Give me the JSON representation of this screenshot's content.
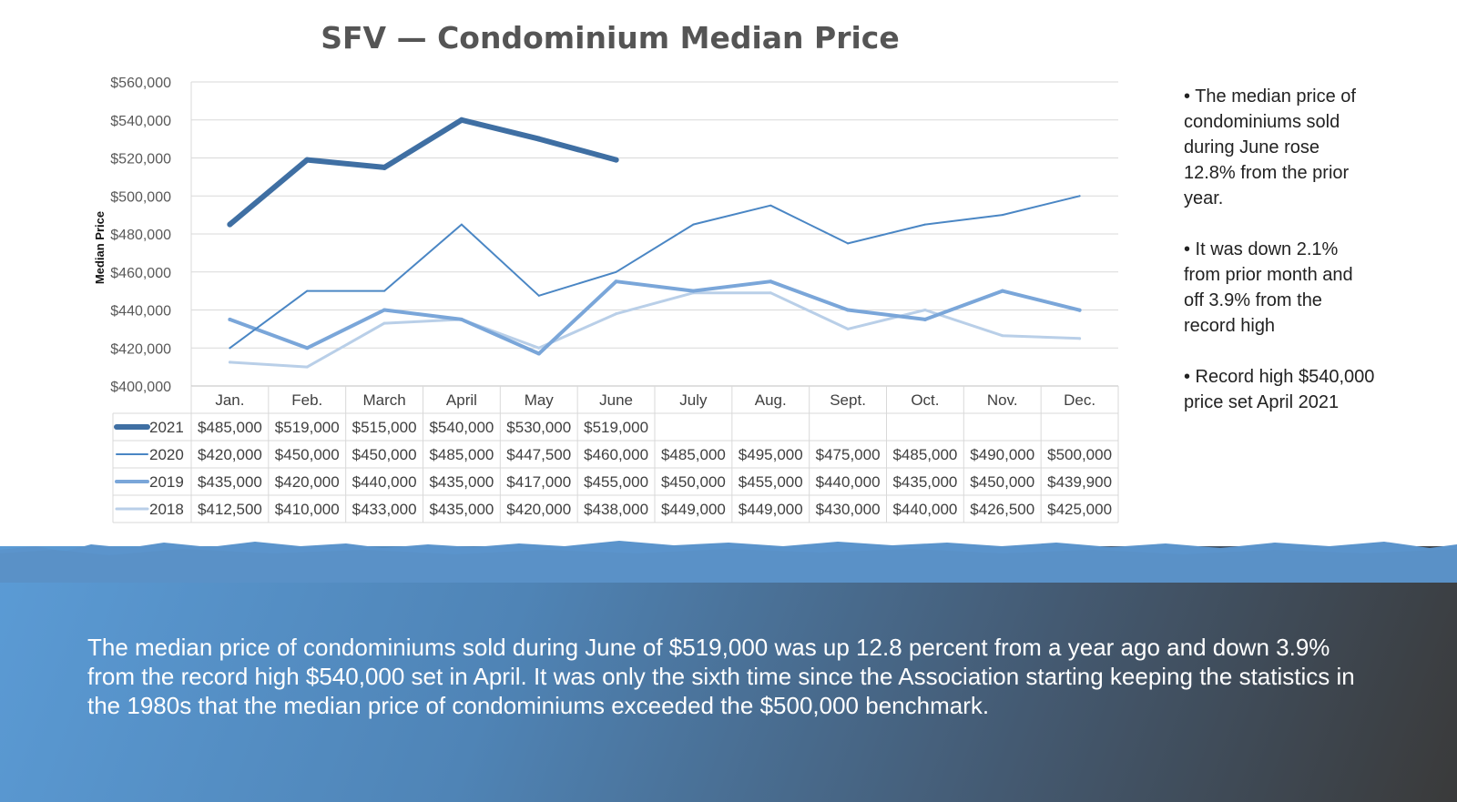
{
  "chart_data": {
    "type": "line",
    "title": "SFV — Condominium Median Price",
    "ylabel": "Median Price",
    "ylim": [
      400000,
      560000
    ],
    "yticks": [
      "$400,000",
      "$420,000",
      "$440,000",
      "$460,000",
      "$480,000",
      "$500,000",
      "$520,000",
      "$540,000",
      "$560,000"
    ],
    "categories": [
      "Jan.",
      "Feb.",
      "March",
      "April",
      "May",
      "June",
      "July",
      "Aug.",
      "Sept.",
      "Oct.",
      "Nov.",
      "Dec."
    ],
    "series": [
      {
        "name": "2021",
        "color": "#3f6fa3",
        "values": [
          485000,
          519000,
          515000,
          540000,
          530000,
          519000,
          null,
          null,
          null,
          null,
          null,
          null
        ],
        "labels": [
          "$485,000",
          "$519,000",
          "$515,000",
          "$540,000",
          "$530,000",
          "$519,000",
          "",
          "",
          "",
          "",
          "",
          ""
        ]
      },
      {
        "name": "2020",
        "color": "#4a86c4",
        "values": [
          420000,
          450000,
          450000,
          485000,
          447500,
          460000,
          485000,
          495000,
          475000,
          485000,
          490000,
          500000
        ],
        "labels": [
          "$420,000",
          "$450,000",
          "$450,000",
          "$485,000",
          "$447,500",
          "$460,000",
          "$485,000",
          "$495,000",
          "$475,000",
          "$485,000",
          "$490,000",
          "$500,000"
        ]
      },
      {
        "name": "2019",
        "color": "#7aa6d9",
        "values": [
          435000,
          420000,
          440000,
          435000,
          417000,
          455000,
          450000,
          455000,
          440000,
          435000,
          450000,
          439900
        ],
        "labels": [
          "$435,000",
          "$420,000",
          "$440,000",
          "$435,000",
          "$417,000",
          "$455,000",
          "$450,000",
          "$455,000",
          "$440,000",
          "$435,000",
          "$450,000",
          "$439,900"
        ]
      },
      {
        "name": "2018",
        "color": "#b9cfe8",
        "values": [
          412500,
          410000,
          433000,
          435000,
          420000,
          438000,
          449000,
          449000,
          430000,
          440000,
          426500,
          425000
        ],
        "labels": [
          "$412,500",
          "$410,000",
          "$433,000",
          "$435,000",
          "$420,000",
          "$438,000",
          "$449,000",
          "$449,000",
          "$430,000",
          "$440,000",
          "$426,500",
          "$425,000"
        ]
      }
    ],
    "grid": true,
    "legend": "data table below chart"
  },
  "sidebar": {
    "bullets": [
      "• The median price of condominiums sold during June rose 12.8% from the prior year.",
      "• It was down 2.1% from prior month and off 3.9% from the record high",
      "• Record high $540,000 price set April 2021"
    ]
  },
  "summary": "The median price of condominiums sold during June of $519,000 was up 12.8 percent from a year ago and down 3.9% from the record high $540,000 set in April. It was only the sixth time since the Association starting keeping the statistics in the 1980s that the median price of condominiums exceeded the $500,000 benchmark."
}
